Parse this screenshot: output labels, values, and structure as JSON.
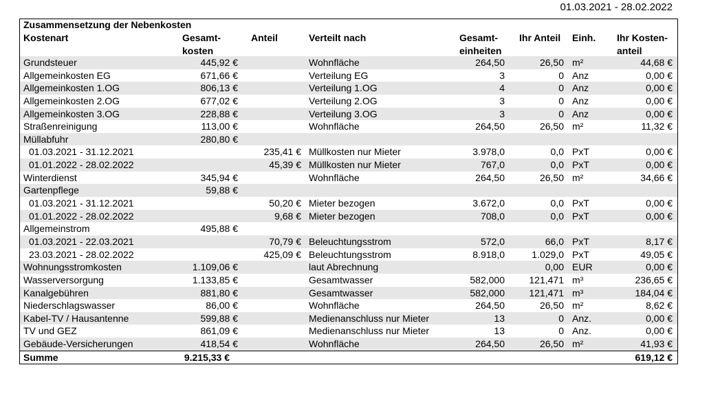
{
  "header": {
    "period": "01.03.2021 - 28.02.2022",
    "title": "Zusammensetzung der Nebenkosten"
  },
  "table": {
    "columns": [
      [
        "Kostenart"
      ],
      [
        "Gesamt-",
        "kosten"
      ],
      [
        "Anteil"
      ],
      [
        "Verteilt nach"
      ],
      [
        "Gesamt-",
        "einheiten"
      ],
      [
        "Ihr Anteil"
      ],
      [
        "Einh."
      ],
      [
        "Ihr Kosten-",
        "anteil"
      ]
    ],
    "rows": [
      [
        "Grundsteuer",
        "445,92 €",
        null,
        "Wohnfläche",
        "264,50",
        "26,50",
        "m²",
        "44,68 €"
      ],
      [
        "Allgemeinkosten EG",
        "671,66 €",
        null,
        "Verteilung EG",
        "3",
        "0",
        "Anz",
        "0,00 €"
      ],
      [
        "Allgemeinkosten 1.OG",
        "806,13 €",
        null,
        "Verteilung 1.OG",
        "4",
        "0",
        "Anz",
        "0,00 €"
      ],
      [
        "Allgemeinkosten 2.OG",
        "677,02 €",
        null,
        "Verteilung 2.OG",
        "3",
        "0",
        "Anz",
        "0,00 €"
      ],
      [
        "Allgemeinkosten 3.OG",
        "228,88 €",
        null,
        "Verteilung 3.OG",
        "3",
        "0",
        "Anz",
        "0,00 €"
      ],
      [
        "Straßenreinigung",
        "113,00 €",
        null,
        "Wohnfläche",
        "264,50",
        "26,50",
        "m²",
        "11,32 €"
      ],
      [
        "Müllabfuhr",
        "280,80 €",
        null,
        null,
        null,
        null,
        null,
        null
      ],
      [
        "01.03.2021 - 31.12.2021",
        null,
        "235,41 €",
        "Müllkosten nur Mieter",
        "3.978,0",
        "0,0",
        "PxT",
        "0,00 €"
      ],
      [
        "01.01.2022 - 28.02.2022",
        null,
        "45,39 €",
        "Müllkosten nur Mieter",
        "767,0",
        "0,0",
        "PxT",
        "0,00 €"
      ],
      [
        "Winterdienst",
        "345,94 €",
        null,
        "Wohnfläche",
        "264,50",
        "26,50",
        "m²",
        "34,66 €"
      ],
      [
        "Gartenpflege",
        "59,88 €",
        null,
        null,
        null,
        null,
        null,
        null
      ],
      [
        "01.03.2021 - 31.12.2021",
        null,
        "50,20 €",
        "Mieter bezogen",
        "3.672,0",
        "0,0",
        "PxT",
        "0,00 €"
      ],
      [
        "01.01.2022 - 28.02.2022",
        null,
        "9,68 €",
        "Mieter bezogen",
        "708,0",
        "0,0",
        "PxT",
        "0,00 €"
      ],
      [
        "Allgemeinstrom",
        "495,88 €",
        null,
        null,
        null,
        null,
        null,
        null
      ],
      [
        "01.03.2021 - 22.03.2021",
        null,
        "70,79 €",
        "Beleuchtungsstrom",
        "572,0",
        "66,0",
        "PxT",
        "8,17 €"
      ],
      [
        "23.03.2021 - 28.02.2022",
        null,
        "425,09 €",
        "Beleuchtungsstrom",
        "8.918,0",
        "1.029,0",
        "PxT",
        "49,05 €"
      ],
      [
        "Wohnungsstromkosten",
        "1.109,06 €",
        null,
        "laut Abrechnung",
        null,
        "0,00",
        "EUR",
        "0,00 €"
      ],
      [
        "Wasserversorgung",
        "1.133,85 €",
        null,
        "Gesamtwasser",
        "582,000",
        "121,471",
        "m³",
        "236,65 €"
      ],
      [
        "Kanalgebühren",
        "881,80 €",
        null,
        "Gesamtwasser",
        "582,000",
        "121,471",
        "m³",
        "184,04 €"
      ],
      [
        "Niederschlagswasser",
        "86,00 €",
        null,
        "Wohnfläche",
        "264,50",
        "26,50",
        "m²",
        "8,62 €"
      ],
      [
        "Kabel-TV / Hausantenne",
        "599,88 €",
        null,
        "Medienanschluss nur Mieter",
        "13",
        "0",
        "Anz.",
        "0,00 €"
      ],
      [
        "TV und GEZ",
        "861,09 €",
        null,
        "Medienanschluss nur Mieter",
        "13",
        "0",
        "Anz.",
        "0,00 €"
      ],
      [
        "Gebäude-Versicherungen",
        "418,54 €",
        null,
        "Wohnfläche",
        "264,50",
        "26,50",
        "m²",
        "41,93 €"
      ]
    ],
    "total": [
      "Summe",
      "9.215,33 €",
      null,
      null,
      null,
      null,
      null,
      "619,12 €"
    ]
  }
}
